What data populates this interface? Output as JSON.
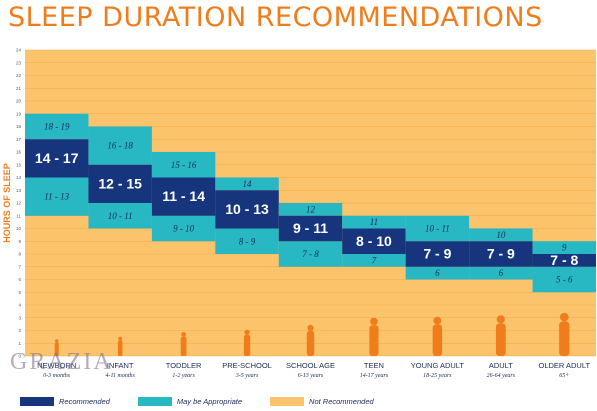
{
  "page": {
    "title": "SLEEP DURATION RECOMMENDATIONS",
    "watermark": "GRAZIA"
  },
  "chart_data": {
    "type": "bar",
    "title": "SLEEP DURATION RECOMMENDATIONS",
    "ylabel": "HOURS OF SLEEP",
    "ylim": [
      0,
      24
    ],
    "yticks": [
      0,
      1,
      2,
      3,
      4,
      5,
      6,
      7,
      8,
      9,
      10,
      11,
      12,
      13,
      14,
      15,
      16,
      17,
      18,
      19,
      20,
      21,
      22,
      23,
      24
    ],
    "categories": [
      {
        "name": "NEWBORN",
        "age": "0-3 months"
      },
      {
        "name": "INFANT",
        "age": "4-11 months"
      },
      {
        "name": "TODDLER",
        "age": "1-2 years"
      },
      {
        "name": "PRE-SCHOOL",
        "age": "3-5 years"
      },
      {
        "name": "SCHOOL AGE",
        "age": "6-13 years"
      },
      {
        "name": "TEEN",
        "age": "14-17 years"
      },
      {
        "name": "YOUNG ADULT",
        "age": "18-25 years"
      },
      {
        "name": "ADULT",
        "age": "26-64 years"
      },
      {
        "name": "OLDER ADULT",
        "age": "65+"
      }
    ],
    "series": [
      {
        "name": "Recommended",
        "color": "#17357d",
        "ranges": [
          [
            14,
            17
          ],
          [
            12,
            15
          ],
          [
            11,
            14
          ],
          [
            10,
            13
          ],
          [
            9,
            11
          ],
          [
            8,
            10
          ],
          [
            7,
            9
          ],
          [
            7,
            9
          ],
          [
            7,
            8
          ]
        ],
        "labels": [
          "14 - 17",
          "12 - 15",
          "11 - 14",
          "10 - 13",
          "9 - 11",
          "8 - 10",
          "7 - 9",
          "7 - 9",
          "7 - 8"
        ]
      },
      {
        "name": "May be Appropriate (upper)",
        "color": "#27b8c4",
        "ranges": [
          [
            17,
            19
          ],
          [
            15,
            18
          ],
          [
            14,
            16
          ],
          [
            13,
            14
          ],
          [
            11,
            12
          ],
          [
            10,
            11
          ],
          [
            9,
            11
          ],
          [
            9,
            10
          ],
          [
            8,
            9
          ]
        ],
        "labels": [
          "18 - 19",
          "16 - 18",
          "15 - 16",
          "14",
          "12",
          "11",
          "10 - 11",
          "10",
          "9"
        ]
      },
      {
        "name": "May be Appropriate (lower)",
        "color": "#27b8c4",
        "ranges": [
          [
            11,
            14
          ],
          [
            10,
            12
          ],
          [
            9,
            11
          ],
          [
            8,
            10
          ],
          [
            7,
            9
          ],
          [
            7,
            8
          ],
          [
            6,
            7
          ],
          [
            6,
            7
          ],
          [
            5,
            7
          ]
        ],
        "labels": [
          "11 - 13",
          "10 - 11",
          "9 - 10",
          "8 - 9",
          "7 - 8",
          "7",
          "6",
          "6",
          "5 - 6"
        ]
      }
    ],
    "background_color": "#fbc46c",
    "legend": [
      {
        "label": "Recommended",
        "color": "#17357d"
      },
      {
        "label": "May be Appropriate",
        "color": "#27b8c4"
      },
      {
        "label": "Not Recommended",
        "color": "#fbc46c"
      }
    ],
    "legend_position": "bottom",
    "grid": true
  }
}
